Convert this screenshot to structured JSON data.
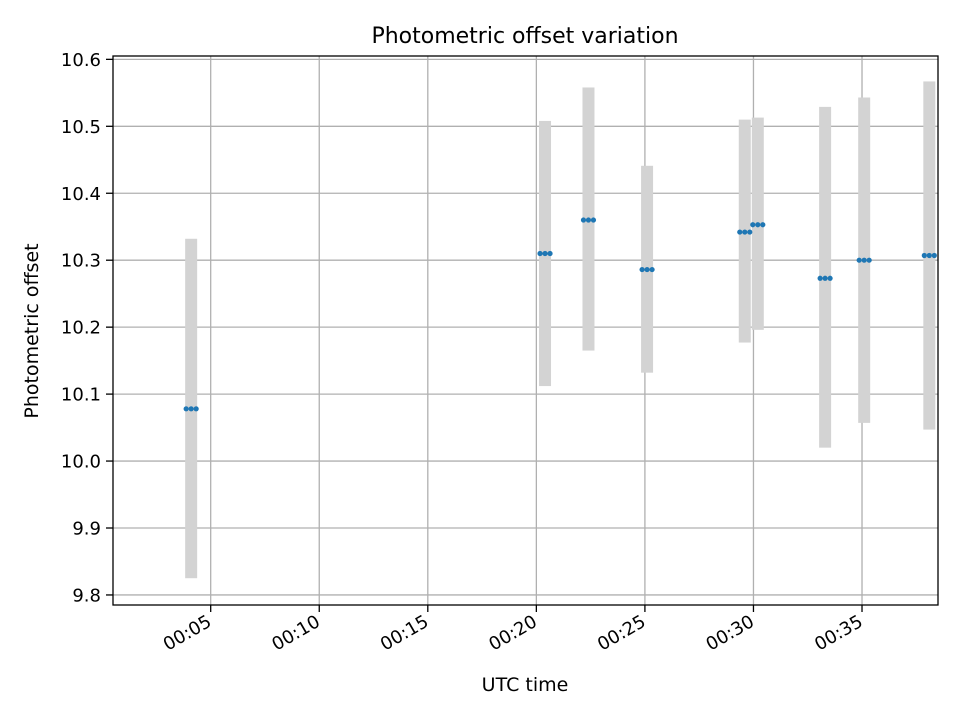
{
  "chart_data": {
    "type": "scatter",
    "title": "Photometric offset variation",
    "xlabel": "UTC time",
    "ylabel": "Photometric offset",
    "x_unit": "minutes after 00:00 UTC",
    "xlim": [
      0.5,
      38.5
    ],
    "ylim": [
      9.785,
      10.605
    ],
    "grid": true,
    "x_ticks": [
      {
        "value": 5,
        "label": "00:05"
      },
      {
        "value": 10,
        "label": "00:10"
      },
      {
        "value": 15,
        "label": "00:15"
      },
      {
        "value": 20,
        "label": "00:20"
      },
      {
        "value": 25,
        "label": "00:25"
      },
      {
        "value": 30,
        "label": "00:30"
      },
      {
        "value": 35,
        "label": "00:35"
      }
    ],
    "y_ticks": [
      {
        "value": 9.8,
        "label": "9.8"
      },
      {
        "value": 9.9,
        "label": "9.9"
      },
      {
        "value": 10.0,
        "label": "10.0"
      },
      {
        "value": 10.1,
        "label": "10.1"
      },
      {
        "value": 10.2,
        "label": "10.2"
      },
      {
        "value": 10.3,
        "label": "10.3"
      },
      {
        "value": 10.4,
        "label": "10.4"
      },
      {
        "value": 10.5,
        "label": "10.5"
      },
      {
        "value": 10.6,
        "label": "10.6"
      }
    ],
    "series": [
      {
        "name": "Photometric offset",
        "color": "#1f77b4",
        "errorbar_color": "#d3d3d3",
        "points": [
          {
            "x": 4.1,
            "y": 10.078,
            "err_low": 9.825,
            "err_high": 10.332
          },
          {
            "x": 20.4,
            "y": 10.31,
            "err_low": 10.112,
            "err_high": 10.508
          },
          {
            "x": 22.4,
            "y": 10.36,
            "err_low": 10.165,
            "err_high": 10.558
          },
          {
            "x": 25.1,
            "y": 10.286,
            "err_low": 10.132,
            "err_high": 10.441
          },
          {
            "x": 29.6,
            "y": 10.342,
            "err_low": 10.177,
            "err_high": 10.51
          },
          {
            "x": 30.2,
            "y": 10.353,
            "err_low": 10.196,
            "err_high": 10.513
          },
          {
            "x": 33.3,
            "y": 10.273,
            "err_low": 10.02,
            "err_high": 10.529
          },
          {
            "x": 35.1,
            "y": 10.3,
            "err_low": 10.057,
            "err_high": 10.543
          },
          {
            "x": 38.1,
            "y": 10.307,
            "err_low": 10.047,
            "err_high": 10.567
          }
        ]
      }
    ]
  }
}
